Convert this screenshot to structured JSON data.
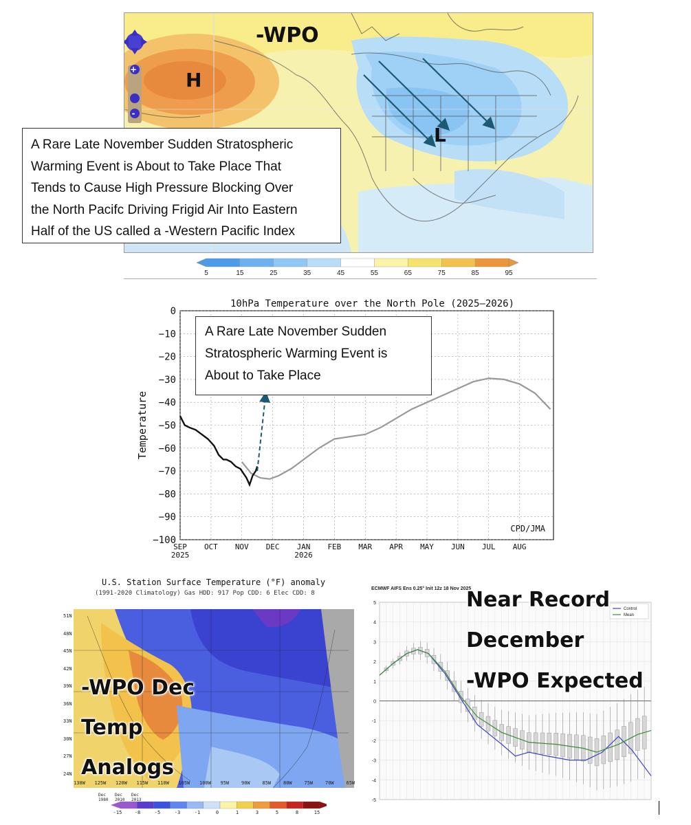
{
  "panel1": {
    "label_wpo": "-WPO",
    "label_high": "H",
    "label_low": "L",
    "callout_lines": [
      "A Rare Late November Sudden Stratospheric",
      "Warming Event is About to Take Place That",
      "Tends to Cause High Pressure Blocking Over",
      "the North Pacifc Driving Frigid Air Into Eastern",
      "Half of the US called a -Western Pacific Index"
    ],
    "colorbar_ticks": [
      "5",
      "15",
      "25",
      "35",
      "45",
      "55",
      "65",
      "75",
      "85",
      "95"
    ],
    "colorbar_colors": [
      "#4a9be8",
      "#6cb2f0",
      "#8fc8f4",
      "#b7ddf7",
      "#ffffff",
      "#fbf3a6",
      "#f6e36c",
      "#f2c24a",
      "#ec963a"
    ],
    "nav_zoom_in": "+",
    "nav_zoom_out": "-"
  },
  "panel2": {
    "callout_lines": [
      "A Rare Late November Sudden",
      "Stratospheric Warming Event is",
      "About to Take Place"
    ],
    "credit": "CPD/JMA"
  },
  "panel3": {
    "title": "U.S. Station Surface Temperature (°F) anomaly",
    "subtitle": "(1991-2020 Climatology)    Gas HDD: 917 Pop CDD: 6 Elec CDD: 8",
    "overlay_lines": [
      "-WPO Dec",
      "Temp",
      "Analogs"
    ],
    "lat_labels": [
      "51N",
      "48N",
      "45N",
      "42N",
      "39N",
      "36N",
      "33N",
      "30N",
      "27N",
      "24N"
    ],
    "lon_labels": [
      "130W",
      "125W",
      "120W",
      "115W",
      "110W",
      "105W",
      "100W",
      "95W",
      "90W",
      "85W",
      "80W",
      "75W",
      "70W",
      "65W"
    ],
    "legend_years": [
      "Dec\n1980",
      "Dec\n2010",
      "Dec\n2013"
    ],
    "legend_ticks": [
      "-15",
      "-8",
      "-5",
      "-3",
      "-1",
      "0",
      "1",
      "3",
      "5",
      "8",
      "15"
    ]
  },
  "panel4": {
    "header": "ECMWF AIFS Ens 0.25° Init 12z 18 Nov 2025",
    "overlay_lines": [
      "Near Record",
      "December",
      "-WPO Expected"
    ],
    "legend": [
      "Control",
      "Mean"
    ],
    "y_ticks": [
      "5",
      "4",
      "3",
      "2",
      "1",
      "0",
      "-1",
      "-2",
      "-3",
      "-4",
      "-5"
    ]
  },
  "chart_data": {
    "type": "line",
    "title": "10hPa Temperature over the North Pole (2025‒2026)",
    "ylabel": "Temperature",
    "ylim": [
      -100,
      0
    ],
    "y_ticks": [
      0,
      -10,
      -20,
      -30,
      -40,
      -50,
      -60,
      -70,
      -80,
      -90,
      -100
    ],
    "x_ticks": [
      "SEP",
      "OCT",
      "NOV",
      "DEC",
      "JAN",
      "FEB",
      "MAR",
      "APR",
      "MAY",
      "JUN",
      "JUL",
      "AUG"
    ],
    "x_years": {
      "SEP": "2025",
      "JAN": "2026"
    },
    "series": [
      {
        "values_month_index": [
          0,
          0.15,
          0.3,
          0.5,
          0.7,
          0.9,
          1.1,
          1.25,
          1.4,
          1.5,
          1.65,
          1.8,
          1.95,
          2.05,
          2.15,
          2.25,
          2.35,
          2.45,
          2.5
        ],
        "values": [
          -46,
          -50,
          -51,
          -52,
          -54,
          -56,
          -59,
          -63,
          -65,
          -65,
          -66,
          -68,
          -69,
          -71,
          -73,
          -76,
          -72,
          -70,
          -68
        ]
      },
      {
        "values_month_index": [
          2.0,
          2.3,
          2.6,
          2.9,
          3.2,
          3.6,
          4.0,
          4.5,
          5.0,
          5.5,
          6.0,
          6.5,
          7.0,
          7.5,
          8.0,
          8.5,
          9.0,
          9.5,
          10.0,
          10.5,
          11.0,
          11.5,
          12.0
        ],
        "values": [
          -66,
          -71,
          -73,
          -73.5,
          -72,
          -69,
          -65,
          -60,
          -56,
          -55,
          -54,
          -51,
          -47,
          -43,
          -40,
          -37,
          -34,
          -31,
          -29.5,
          -30,
          -32,
          -36,
          -43
        ]
      }
    ],
    "annotation": {
      "month_index": 2.5,
      "from": -70,
      "to": -37,
      "style": "dashed-arrow"
    }
  }
}
